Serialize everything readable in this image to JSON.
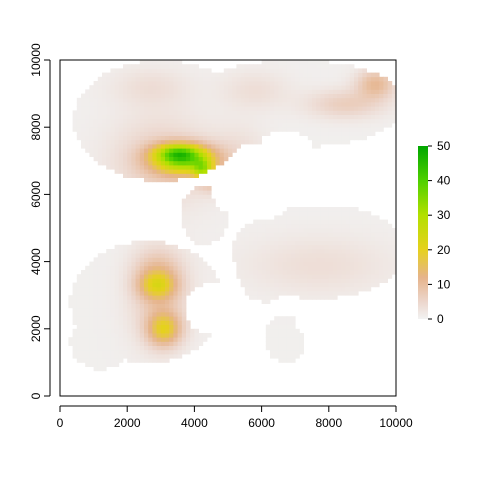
{
  "chart_data": {
    "type": "heatmap",
    "title": "",
    "xlabel": "",
    "ylabel": "",
    "xlim": [
      0,
      10000
    ],
    "ylim": [
      0,
      10000
    ],
    "xticks": [
      0,
      2000,
      4000,
      6000,
      8000,
      10000
    ],
    "yticks": [
      0,
      2000,
      4000,
      6000,
      8000,
      10000
    ],
    "grid": false,
    "legend": {
      "placement": "right",
      "range": [
        0,
        50
      ],
      "ticks": [
        0,
        10,
        20,
        30,
        40,
        50
      ],
      "colormap": "terrain (reversed)",
      "color_stops": [
        {
          "value": 0,
          "color": "#f2f2f2"
        },
        {
          "value": 5,
          "color": "#ecd6cc"
        },
        {
          "value": 12,
          "color": "#e6b48c"
        },
        {
          "value": 20,
          "color": "#e6d11e"
        },
        {
          "value": 30,
          "color": "#b3e000"
        },
        {
          "value": 40,
          "color": "#4fd000"
        },
        {
          "value": 50,
          "color": "#00a600"
        }
      ]
    },
    "grid_resolution": 125,
    "blobs": [
      {
        "x": 3700,
        "y": 7050,
        "sx": 650,
        "sy": 300,
        "amp": 30
      },
      {
        "x": 3500,
        "y": 7250,
        "sx": 450,
        "sy": 180,
        "amp": 16
      },
      {
        "x": 4250,
        "y": 6750,
        "sx": 200,
        "sy": 200,
        "amp": 16
      },
      {
        "x": 3000,
        "y": 7000,
        "sx": 1000,
        "sy": 900,
        "amp": 6
      },
      {
        "x": 4600,
        "y": 6400,
        "sx": 350,
        "sy": 250,
        "amp": 7
      },
      {
        "x": 2900,
        "y": 3300,
        "sx": 400,
        "sy": 300,
        "amp": 14
      },
      {
        "x": 3100,
        "y": 2000,
        "sx": 350,
        "sy": 350,
        "amp": 16
      },
      {
        "x": 2950,
        "y": 2800,
        "sx": 600,
        "sy": 900,
        "amp": 6
      },
      {
        "x": 2900,
        "y": 3800,
        "sx": 500,
        "sy": 450,
        "amp": 6
      },
      {
        "x": 9400,
        "y": 9300,
        "sx": 400,
        "sy": 300,
        "amp": 10
      },
      {
        "x": 8500,
        "y": 8700,
        "sx": 800,
        "sy": 300,
        "amp": 6
      },
      {
        "x": 5800,
        "y": 9100,
        "sx": 700,
        "sy": 400,
        "amp": 3
      },
      {
        "x": 2700,
        "y": 9200,
        "sx": 800,
        "sy": 400,
        "amp": 3
      },
      {
        "x": 7700,
        "y": 3900,
        "sx": 1500,
        "sy": 600,
        "amp": 3
      },
      {
        "x": 5300,
        "y": 7200,
        "sx": 600,
        "sy": 600,
        "amp": 3
      }
    ],
    "support": [
      {
        "x": 3000,
        "y": 8200,
        "rx": 2600,
        "ry": 1800
      },
      {
        "x": 7000,
        "y": 8700,
        "rx": 3300,
        "ry": 1300
      },
      {
        "x": 2600,
        "y": 2800,
        "rx": 2300,
        "ry": 1800
      },
      {
        "x": 1200,
        "y": 1600,
        "rx": 900,
        "ry": 800
      },
      {
        "x": 7700,
        "y": 4300,
        "rx": 2600,
        "ry": 1400
      },
      {
        "x": 6100,
        "y": 3700,
        "rx": 800,
        "ry": 900
      },
      {
        "x": 6700,
        "y": 1700,
        "rx": 600,
        "ry": 700
      },
      {
        "x": 4300,
        "y": 5400,
        "rx": 700,
        "ry": 900
      }
    ],
    "holes": [
      {
        "x": 5800,
        "y": 6200,
        "rx": 1300,
        "ry": 1000
      },
      {
        "x": 8000,
        "y": 6500,
        "rx": 1800,
        "ry": 900
      },
      {
        "x": 4600,
        "y": 2600,
        "rx": 900,
        "ry": 800
      },
      {
        "x": 9300,
        "y": 1600,
        "rx": 1100,
        "ry": 1300
      },
      {
        "x": 7900,
        "y": 2200,
        "rx": 900,
        "ry": 500
      },
      {
        "x": 6700,
        "y": 7400,
        "rx": 800,
        "ry": 500
      }
    ]
  }
}
